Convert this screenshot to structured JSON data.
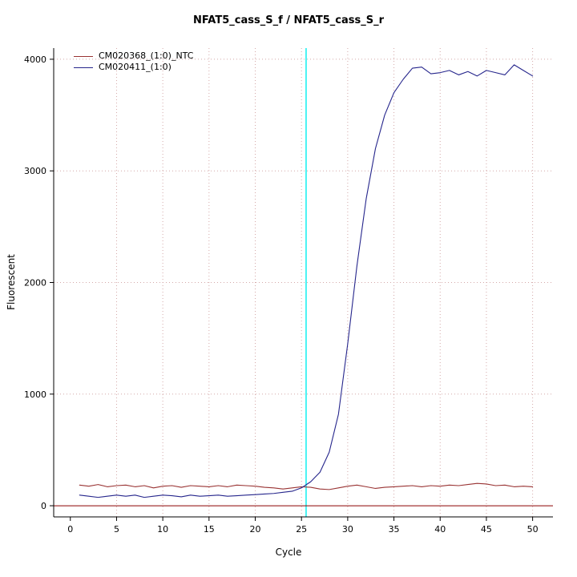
{
  "title": "NFAT5_cass_S_f / NFAT5_cass_S_r",
  "chart_data": {
    "type": "line",
    "title": "NFAT5_cass_S_f / NFAT5_cass_S_r",
    "xlabel": "Cycle",
    "ylabel": "Fluorescent",
    "xlim": [
      -1.8,
      52.2
    ],
    "ylim": [
      -100,
      4100
    ],
    "xticks": [
      0,
      5,
      10,
      15,
      20,
      25,
      30,
      35,
      40,
      45,
      50
    ],
    "yticks": [
      0,
      1000,
      2000,
      3000,
      4000
    ],
    "grid": true,
    "grid_color": "#d4a8a8",
    "legend_position": "top-left",
    "threshold_line": {
      "x": 25.5,
      "color": "#00eeee"
    },
    "baseline": {
      "y": 0,
      "color": "#8b0000"
    },
    "x": [
      1,
      2,
      3,
      4,
      5,
      6,
      7,
      8,
      9,
      10,
      11,
      12,
      13,
      14,
      15,
      16,
      17,
      18,
      19,
      20,
      21,
      22,
      23,
      24,
      25,
      26,
      27,
      28,
      29,
      30,
      31,
      32,
      33,
      34,
      35,
      36,
      37,
      38,
      39,
      40,
      41,
      42,
      43,
      44,
      45,
      46,
      47,
      48,
      49,
      50
    ],
    "series": [
      {
        "name": "CM020368_(1:0)_NTC",
        "color": "#993333",
        "values": [
          185,
          175,
          190,
          170,
          180,
          185,
          170,
          180,
          160,
          175,
          180,
          165,
          180,
          175,
          170,
          180,
          170,
          185,
          180,
          175,
          165,
          160,
          150,
          160,
          170,
          165,
          150,
          145,
          160,
          175,
          185,
          170,
          155,
          165,
          170,
          175,
          180,
          170,
          180,
          175,
          185,
          180,
          190,
          200,
          195,
          180,
          185,
          170,
          175,
          170
        ]
      },
      {
        "name": "CM020411_(1:0)",
        "color": "#26268c",
        "values": [
          95,
          85,
          75,
          85,
          95,
          85,
          95,
          75,
          85,
          95,
          90,
          80,
          95,
          85,
          90,
          95,
          85,
          90,
          95,
          100,
          105,
          110,
          120,
          130,
          160,
          215,
          300,
          480,
          820,
          1450,
          2150,
          2750,
          3200,
          3500,
          3700,
          3820,
          3920,
          3930,
          3870,
          3880,
          3900,
          3860,
          3890,
          3850,
          3900,
          3880,
          3860,
          3950,
          3900,
          3850
        ]
      }
    ]
  }
}
